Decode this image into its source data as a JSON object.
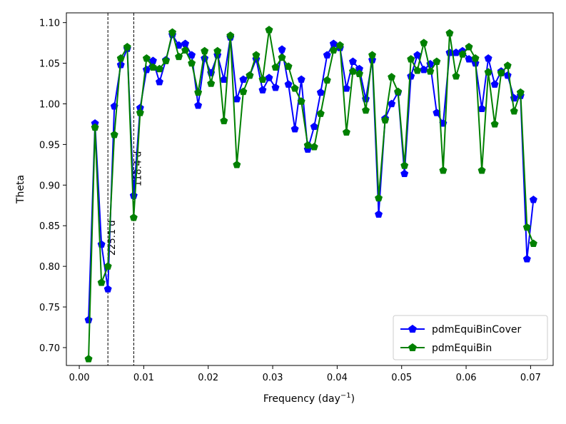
{
  "chart_data": {
    "type": "line",
    "xlabel": "Frequency (day",
    "xlabel_sup": "−1",
    "xlabel_close": ")",
    "ylabel": "Theta",
    "xlim": [
      -0.002,
      0.0735
    ],
    "ylim": [
      0.678,
      1.112
    ],
    "xticks": [
      0.0,
      0.01,
      0.02,
      0.03,
      0.04,
      0.05,
      0.06,
      0.07
    ],
    "xtick_labels": [
      "0.00",
      "0.01",
      "0.02",
      "0.03",
      "0.04",
      "0.05",
      "0.06",
      "0.07"
    ],
    "yticks": [
      0.7,
      0.75,
      0.8,
      0.85,
      0.9,
      0.95,
      1.0,
      1.05,
      1.1
    ],
    "ytick_labels": [
      "0.70",
      "0.75",
      "0.80",
      "0.85",
      "0.90",
      "0.95",
      "1.00",
      "1.05",
      "1.10"
    ],
    "grid": false,
    "legend_position": "bottom-right",
    "vlines": [
      {
        "x": 0.00444,
        "label": "225.1 d"
      },
      {
        "x": 0.00845,
        "label": "118.4 d"
      }
    ],
    "series": [
      {
        "name": "pdmEquiBinCover",
        "color": "#0000ff",
        "marker": "pentagon",
        "x": [
          0.00144,
          0.00244,
          0.00344,
          0.00444,
          0.00544,
          0.00644,
          0.00744,
          0.00844,
          0.00944,
          0.01044,
          0.01144,
          0.01244,
          0.01344,
          0.01444,
          0.01544,
          0.01644,
          0.01744,
          0.01844,
          0.01944,
          0.02044,
          0.02144,
          0.02244,
          0.02344,
          0.02444,
          0.02544,
          0.02644,
          0.02744,
          0.02844,
          0.02944,
          0.03044,
          0.03144,
          0.03244,
          0.03344,
          0.03444,
          0.03544,
          0.03644,
          0.03744,
          0.03844,
          0.03944,
          0.04044,
          0.04144,
          0.04244,
          0.04344,
          0.04444,
          0.04544,
          0.04644,
          0.04744,
          0.04844,
          0.04944,
          0.05044,
          0.05144,
          0.05244,
          0.05344,
          0.05444,
          0.05544,
          0.05644,
          0.05744,
          0.05844,
          0.05944,
          0.06044,
          0.06144,
          0.06244,
          0.06344,
          0.06444,
          0.06544,
          0.06644,
          0.06744,
          0.06844,
          0.06944,
          0.07044
        ],
        "y": [
          0.734,
          0.976,
          0.827,
          0.772,
          0.997,
          1.048,
          1.068,
          0.887,
          0.995,
          1.042,
          1.053,
          1.027,
          1.054,
          1.085,
          1.072,
          1.074,
          1.06,
          0.998,
          1.056,
          1.038,
          1.06,
          1.03,
          1.082,
          1.006,
          1.03,
          1.035,
          1.055,
          1.017,
          1.032,
          1.02,
          1.067,
          1.024,
          0.969,
          1.03,
          0.944,
          0.972,
          1.014,
          1.06,
          1.074,
          1.069,
          1.019,
          1.052,
          1.043,
          1.006,
          1.054,
          0.864,
          0.982,
          1.0,
          1.014,
          0.914,
          1.034,
          1.06,
          1.042,
          1.049,
          0.989,
          0.976,
          1.063,
          1.063,
          1.065,
          1.055,
          1.05,
          0.994,
          1.056,
          1.024,
          1.04,
          1.035,
          1.007,
          1.01,
          0.809,
          0.882
        ]
      },
      {
        "name": "pdmEquiBin",
        "color": "#008000",
        "marker": "pentagon",
        "x": [
          0.00144,
          0.00244,
          0.00344,
          0.00444,
          0.00544,
          0.00644,
          0.00744,
          0.00844,
          0.00944,
          0.01044,
          0.01144,
          0.01244,
          0.01344,
          0.01444,
          0.01544,
          0.01644,
          0.01744,
          0.01844,
          0.01944,
          0.02044,
          0.02144,
          0.02244,
          0.02344,
          0.02444,
          0.02544,
          0.02644,
          0.02744,
          0.02844,
          0.02944,
          0.03044,
          0.03144,
          0.03244,
          0.03344,
          0.03444,
          0.03544,
          0.03644,
          0.03744,
          0.03844,
          0.03944,
          0.04044,
          0.04144,
          0.04244,
          0.04344,
          0.04444,
          0.04544,
          0.04644,
          0.04744,
          0.04844,
          0.04944,
          0.05044,
          0.05144,
          0.05244,
          0.05344,
          0.05444,
          0.05544,
          0.05644,
          0.05744,
          0.05844,
          0.05944,
          0.06044,
          0.06144,
          0.06244,
          0.06344,
          0.06444,
          0.06544,
          0.06644,
          0.06744,
          0.06844,
          0.06944,
          0.07044
        ],
        "y": [
          0.686,
          0.971,
          0.78,
          0.8,
          0.962,
          1.056,
          1.07,
          0.86,
          0.989,
          1.056,
          1.045,
          1.043,
          1.053,
          1.088,
          1.058,
          1.066,
          1.05,
          1.014,
          1.065,
          1.025,
          1.065,
          0.979,
          1.084,
          0.925,
          1.015,
          1.035,
          1.06,
          1.03,
          1.091,
          1.045,
          1.057,
          1.046,
          1.019,
          1.003,
          0.949,
          0.947,
          0.988,
          1.029,
          1.066,
          1.072,
          0.965,
          1.04,
          1.037,
          0.992,
          1.06,
          0.884,
          0.98,
          1.033,
          1.015,
          0.924,
          1.055,
          1.041,
          1.075,
          1.04,
          1.052,
          0.918,
          1.087,
          1.034,
          1.061,
          1.07,
          1.056,
          0.918,
          1.039,
          0.975,
          1.038,
          1.047,
          0.991,
          1.014,
          0.848,
          0.828
        ]
      }
    ]
  }
}
